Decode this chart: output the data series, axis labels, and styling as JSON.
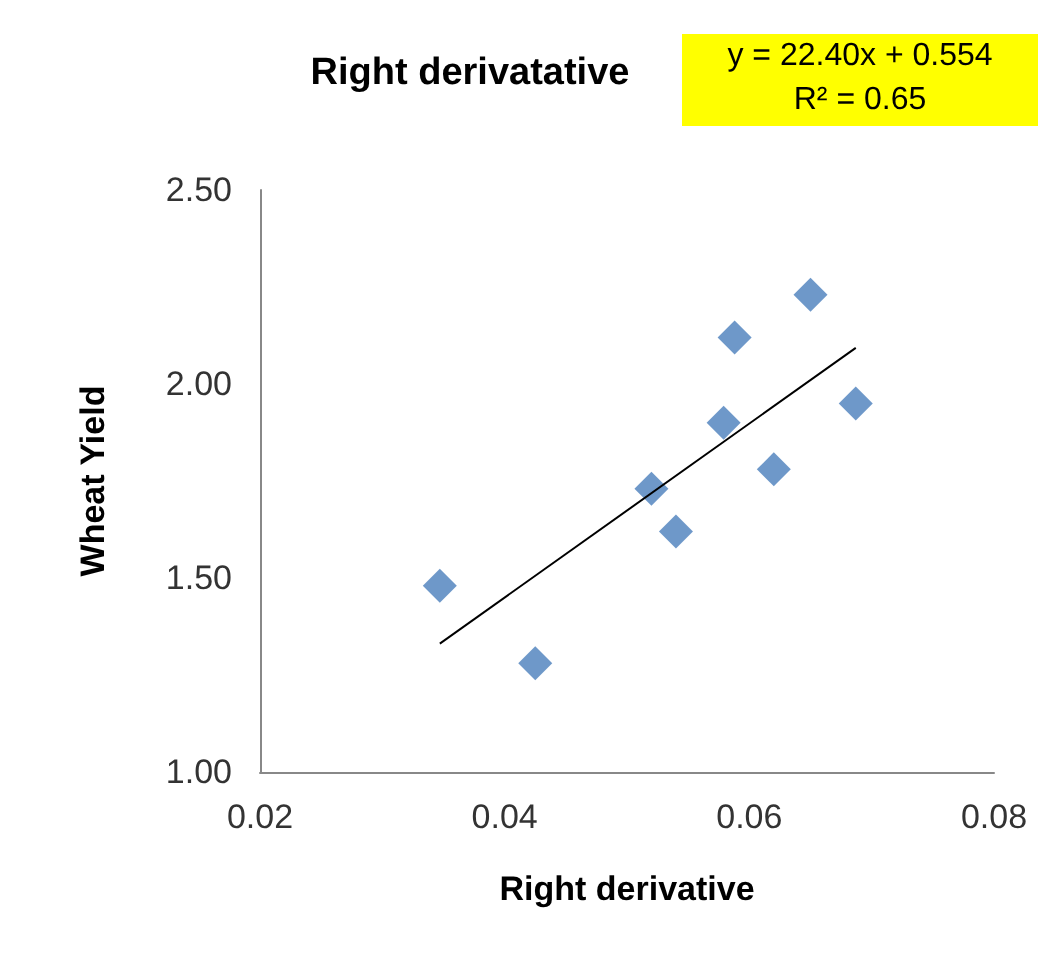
{
  "chart_data": {
    "type": "scatter",
    "title": "Right derivatative",
    "xlabel": "Right derivative",
    "ylabel": "Wheat Yield",
    "annotations": [
      "y = 22.40x + 0.554",
      "R² = 0.65"
    ],
    "series": [
      {
        "color": "#4a7ebb",
        "marker": "diamond",
        "x": [
          0.0347,
          0.0425,
          0.052,
          0.054,
          0.0579,
          0.0588,
          0.062,
          0.065,
          0.0687
        ],
        "values": [
          1.48,
          1.28,
          1.73,
          1.62,
          1.9,
          2.12,
          1.78,
          2.23,
          1.95
        ]
      },
      {
        "type": "line",
        "color": "#000000",
        "marker": "none",
        "x": [
          0.0347,
          0.0687
        ],
        "values": [
          1.331,
          2.093
        ]
      }
    ],
    "xlim": [
      0.02,
      0.08
    ],
    "xticks": [
      0.02,
      0.04,
      0.06,
      0.08
    ],
    "ylim": [
      1.0,
      2.5
    ],
    "yticks": [
      {
        "value": 1.0,
        "label": "1.00"
      },
      {
        "value": 1.5,
        "label": "1.50"
      },
      {
        "value": 2.0,
        "label": "2.00"
      },
      {
        "value": 2.5,
        "label": "2.50"
      }
    ],
    "grid": false
  }
}
